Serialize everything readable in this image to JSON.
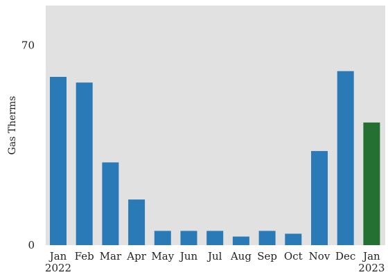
{
  "chart_data": {
    "type": "bar",
    "categories": [
      "Jan",
      "Feb",
      "Mar",
      "Apr",
      "May",
      "Jun",
      "Jul",
      "Aug",
      "Sep",
      "Oct",
      "Nov",
      "Dec",
      "Jan"
    ],
    "category_sublabels": [
      "2022",
      "",
      "",
      "",
      "",
      "",
      "",
      "",
      "",
      "",
      "",
      "",
      "2023"
    ],
    "values": [
      59,
      57,
      29,
      16,
      5,
      5,
      5,
      3,
      5,
      4,
      33,
      61,
      43
    ],
    "bar_colors": [
      "#2a7ab8",
      "#2a7ab8",
      "#2a7ab8",
      "#2a7ab8",
      "#2a7ab8",
      "#2a7ab8",
      "#2a7ab8",
      "#2a7ab8",
      "#2a7ab8",
      "#2a7ab8",
      "#2a7ab8",
      "#2a7ab8",
      "#237032"
    ],
    "title": "",
    "xlabel": "",
    "ylabel": "Gas Therms",
    "ylim": [
      0,
      84
    ],
    "yticks": [
      0,
      70
    ],
    "grid": false,
    "background_color": "#e1e1e1"
  }
}
